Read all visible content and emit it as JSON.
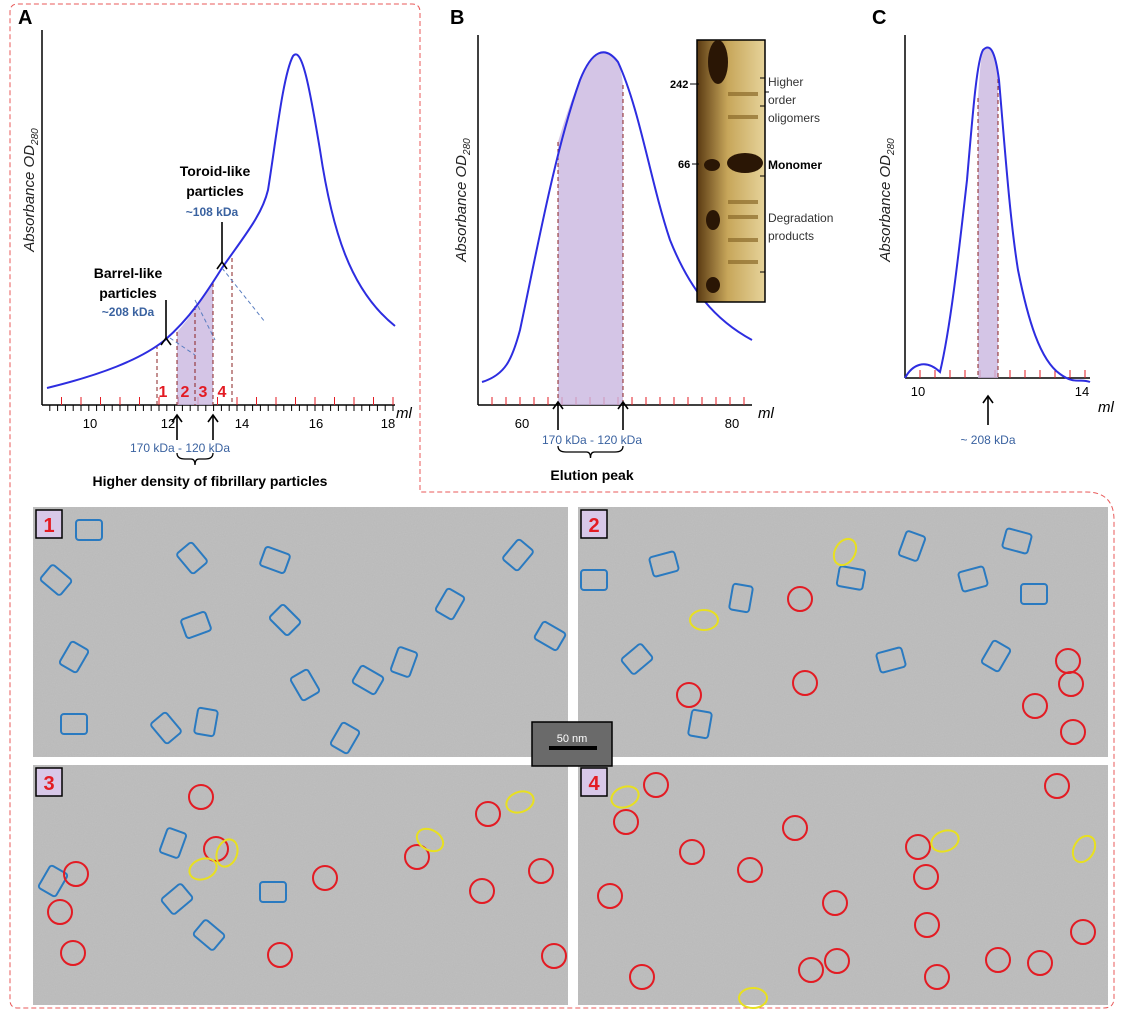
{
  "panels": {
    "A": {
      "label": "A",
      "y_axis_label": "Absorbance OD",
      "y_axis_subscript": "280",
      "x_unit": "ml",
      "x_ticks": [
        10,
        12,
        14,
        16,
        18
      ],
      "fractions": [
        "1",
        "2",
        "3",
        "4"
      ],
      "toroid": {
        "line1": "Toroid-like",
        "line2": "particles",
        "mass": "~108 kDa"
      },
      "barrel": {
        "line1": "Barrel-like",
        "line2": "particles",
        "mass": "~208 kDa"
      },
      "range": "170 kDa - 120 kDa",
      "caption": "Higher density of fibrillary particles"
    },
    "B": {
      "label": "B",
      "y_axis_label": "Absorbance OD",
      "y_axis_subscript": "280",
      "x_unit": "ml",
      "x_ticks": [
        60,
        80
      ],
      "gel": {
        "marker_high": "242",
        "marker_low": "66",
        "band_oligomers": [
          "Higher",
          "order",
          "oligomers"
        ],
        "band_monomer": "Monomer",
        "band_degradation": [
          "Degradation",
          "products"
        ]
      },
      "range": "170 kDa - 120 kDa",
      "caption": "Elution peak"
    },
    "C": {
      "label": "C",
      "y_axis_label": "Absorbance OD",
      "y_axis_subscript": "280",
      "x_unit": "ml",
      "x_ticks": [
        10,
        14
      ],
      "mass": "~ 208 kDa"
    },
    "micrographs": {
      "labels": [
        "1",
        "2",
        "3",
        "4"
      ],
      "scale_bar": "50 nm"
    }
  }
}
